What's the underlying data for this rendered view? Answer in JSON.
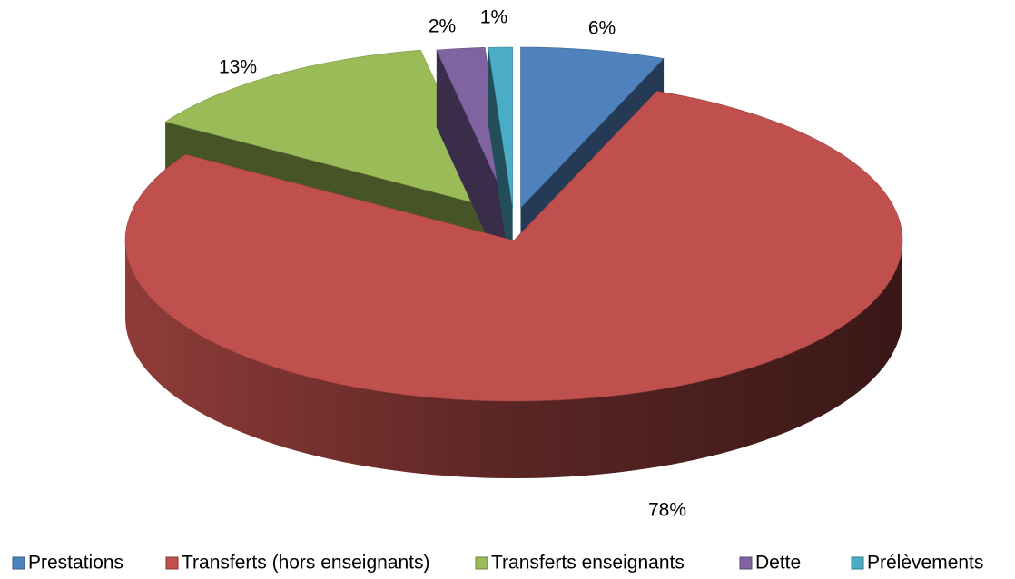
{
  "chart_data": {
    "type": "pie",
    "categories": [
      "Prestations",
      "Transferts (hors enseignants)",
      "Transferts enseignants",
      "Dette",
      "Prélèvements"
    ],
    "values": [
      6,
      78,
      13,
      2,
      1
    ],
    "value_labels": [
      "6%",
      "78%",
      "13%",
      "2%",
      "1%"
    ],
    "colors": [
      "#4f81bd",
      "#c0504d",
      "#9bbb59",
      "#8064a2",
      "#4bacc6"
    ],
    "legend": "bottom"
  }
}
